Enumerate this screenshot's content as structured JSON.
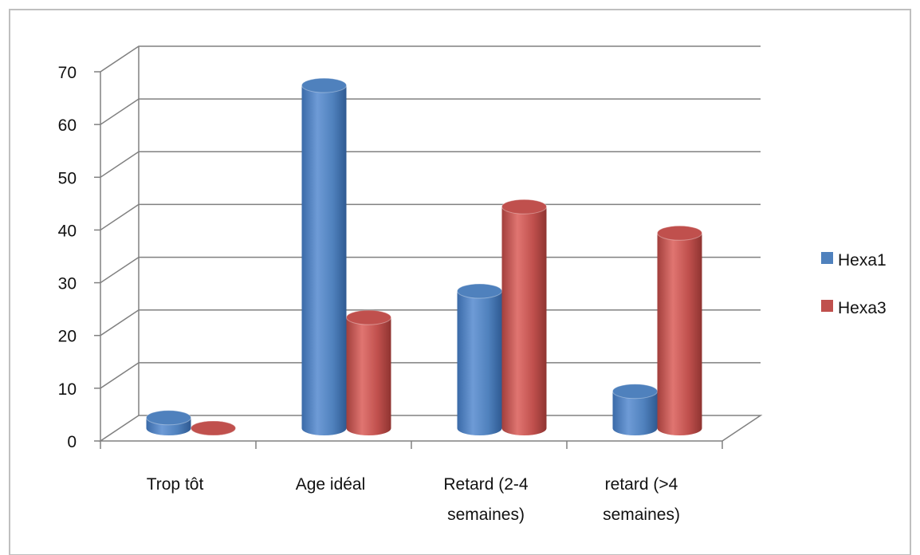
{
  "chart_data": {
    "type": "bar",
    "style": "3d-cylinder",
    "categories": [
      [
        "Trop tôt"
      ],
      [
        "Age idéal"
      ],
      [
        "Retard (2-4",
        "semaines)"
      ],
      [
        "retard (>4",
        "semaines)"
      ]
    ],
    "series": [
      {
        "name": "Hexa1",
        "color": "#4f81bd",
        "values": [
          2,
          65,
          26,
          7
        ]
      },
      {
        "name": "Hexa3",
        "color": "#c0504d",
        "values": [
          0,
          21,
          42,
          37
        ]
      }
    ],
    "ylim": [
      0,
      70
    ],
    "yticks": [
      "0",
      "10",
      "20",
      "30",
      "40",
      "50",
      "60",
      "70"
    ],
    "grid": true,
    "legend_position": "right"
  }
}
